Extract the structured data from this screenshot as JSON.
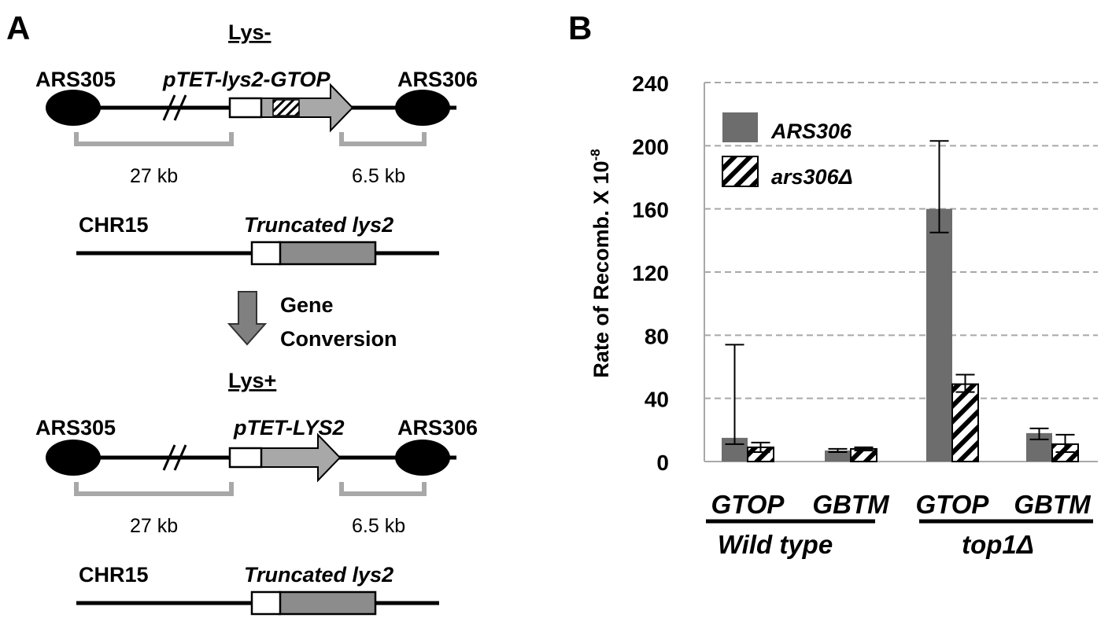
{
  "panel_a": {
    "label": "A",
    "top": {
      "state": "Lys-",
      "left_origin": "ARS305",
      "construct": "pTET-lys2-GTOP",
      "right_origin": "ARS306",
      "left_distance": "27 kb",
      "right_distance": "6.5 kb",
      "chromosome": "CHR15",
      "donor": "Truncated lys2"
    },
    "arrow_label_1": "Gene",
    "arrow_label_2": "Conversion",
    "bottom": {
      "state": "Lys+",
      "left_origin": "ARS305",
      "construct": "pTET-LYS2",
      "right_origin": "ARS306",
      "left_distance": "27 kb",
      "right_distance": "6.5 kb",
      "chromosome": "CHR15",
      "donor": "Truncated lys2"
    }
  },
  "panel_b": {
    "label": "B"
  },
  "colors": {
    "wt_bar": "#6d6d6d",
    "delta_bar": "#ffffff",
    "hatch": "#000000",
    "grid": "#a8a8a8",
    "gene_gray": "#a8a8a8",
    "donor_gray": "#8c8c8c"
  },
  "chart_data": {
    "type": "bar",
    "ylabel_main": "Rate of Recomb.  X 10",
    "ylabel_exp": "-8",
    "ylim": [
      0,
      240
    ],
    "yticks": [
      "0",
      "40",
      "80",
      "120",
      "160",
      "200",
      "240"
    ],
    "grid": true,
    "legend_position": "top-left",
    "categories": [
      "GTOP",
      "GBTM",
      "GTOP",
      "GBTM"
    ],
    "groups": [
      {
        "label": "Wild type",
        "categories": [
          "GTOP",
          "GBTM"
        ]
      },
      {
        "label": "top1Δ",
        "categories": [
          "GTOP",
          "GBTM"
        ]
      }
    ],
    "series": [
      {
        "name": "ARS306",
        "values": [
          15,
          7,
          160,
          18
        ],
        "err_low": [
          11,
          6,
          145,
          14
        ],
        "err_high": [
          74,
          8,
          203,
          21
        ]
      },
      {
        "name": "ars306Δ",
        "values": [
          9,
          8,
          49,
          11
        ],
        "err_low": [
          6,
          7,
          44,
          6
        ],
        "err_high": [
          12,
          9,
          55,
          17
        ]
      }
    ]
  }
}
